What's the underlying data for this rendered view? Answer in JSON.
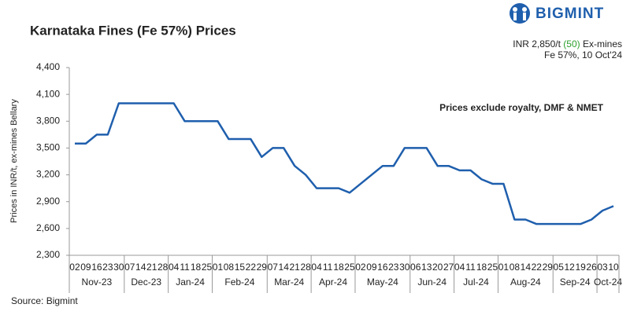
{
  "brand": "BIGMINT",
  "source": "Source: Bigmint",
  "header_note": {
    "price": "INR 2,850/t",
    "change": "(50)",
    "basis": "Ex-mines",
    "spec": "Fe 57%, 10 Oct'24"
  },
  "chart_data": {
    "type": "line",
    "title": "Karnataka Fines (Fe 57%) Prices",
    "ylabel": "Prices in INR/t, ex-mines Bellary",
    "annotation": "Prices exclude royalty, DMF & NMET",
    "color": "#1f5fad",
    "category_groups": [
      {
        "label": "Nov-23",
        "categories": [
          "02",
          "09",
          "16",
          "23",
          "30"
        ]
      },
      {
        "label": "Dec-23",
        "categories": [
          "07",
          "14",
          "21",
          "28"
        ]
      },
      {
        "label": "Jan-24",
        "categories": [
          "04",
          "11",
          "18",
          "25"
        ]
      },
      {
        "label": "Feb-24",
        "categories": [
          "01",
          "08",
          "15",
          "22",
          "29"
        ]
      },
      {
        "label": "Mar-24",
        "categories": [
          "07",
          "14",
          "21",
          "28"
        ]
      },
      {
        "label": "Apr-24",
        "categories": [
          "04",
          "11",
          "18",
          "25"
        ]
      },
      {
        "label": "May-24",
        "categories": [
          "02",
          "09",
          "16",
          "23",
          "30"
        ]
      },
      {
        "label": "Jun-24",
        "categories": [
          "06",
          "13",
          "20",
          "27"
        ]
      },
      {
        "label": "Jul-24",
        "categories": [
          "04",
          "11",
          "18",
          "25"
        ]
      },
      {
        "label": "Aug-24",
        "categories": [
          "01",
          "08",
          "14",
          "22",
          "29"
        ]
      },
      {
        "label": "Sep-24",
        "categories": [
          "05",
          "12",
          "19",
          "26"
        ]
      },
      {
        "label": "Oct-24",
        "categories": [
          "03",
          "10"
        ]
      }
    ],
    "values": [
      3550,
      3550,
      3650,
      3650,
      4000,
      4000,
      4000,
      4000,
      4000,
      4000,
      3800,
      3800,
      3800,
      3800,
      3600,
      3600,
      3600,
      3400,
      3500,
      3500,
      3300,
      3200,
      3050,
      3050,
      3050,
      3000,
      3100,
      3200,
      3300,
      3300,
      3500,
      3500,
      3500,
      3300,
      3300,
      3250,
      3250,
      3150,
      3100,
      3100,
      2700,
      2700,
      2650,
      2650,
      2650,
      2650,
      2650,
      2700,
      2800,
      2850
    ],
    "ylim": [
      2300,
      4400
    ],
    "yticks": [
      {
        "value": 2300,
        "label": "2,300"
      },
      {
        "value": 2600,
        "label": "2,600"
      },
      {
        "value": 2900,
        "label": "2,900"
      },
      {
        "value": 3200,
        "label": "3,200"
      },
      {
        "value": 3500,
        "label": "3,500"
      },
      {
        "value": 3800,
        "label": "3,800"
      },
      {
        "value": 4100,
        "label": "4,100"
      },
      {
        "value": 4400,
        "label": "4,400"
      }
    ],
    "grid": false
  }
}
